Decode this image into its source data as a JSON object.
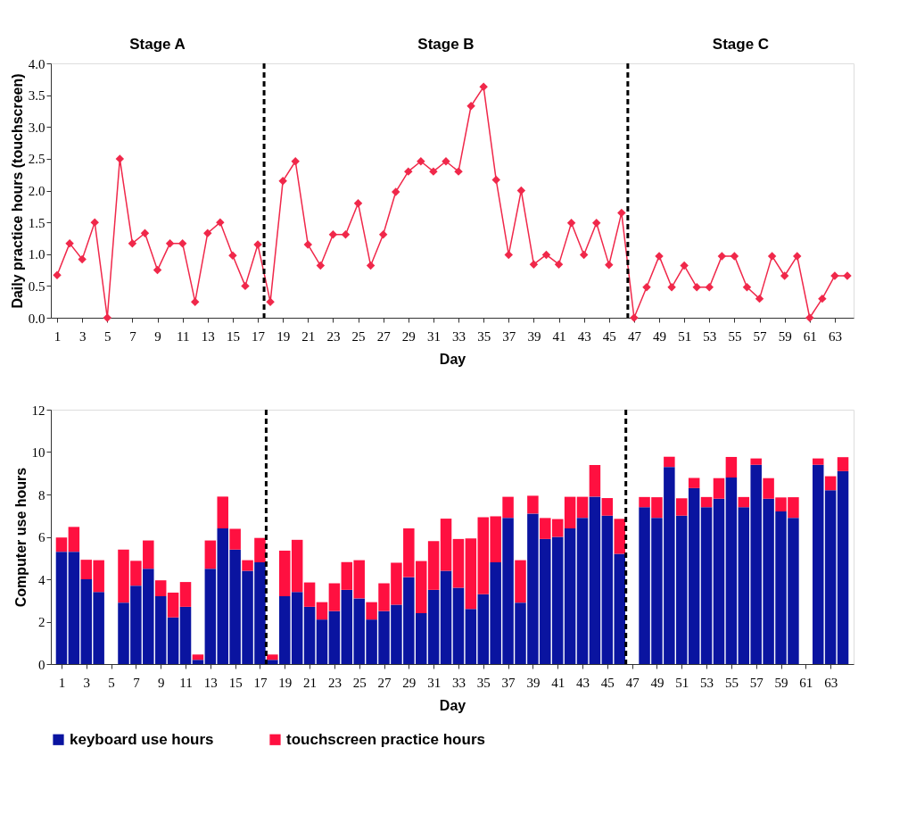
{
  "chart_data": [
    {
      "type": "line",
      "xlabel": "Day",
      "ylabel": "Daily practice hours (touchscreen)",
      "x": [
        1,
        2,
        3,
        4,
        5,
        6,
        7,
        8,
        9,
        10,
        11,
        12,
        13,
        14,
        15,
        16,
        17,
        18,
        19,
        20,
        21,
        22,
        23,
        24,
        25,
        26,
        27,
        28,
        29,
        30,
        31,
        32,
        33,
        34,
        35,
        36,
        37,
        38,
        39,
        40,
        41,
        42,
        43,
        44,
        45,
        46,
        47,
        48,
        49,
        50,
        51,
        52,
        53,
        54,
        55,
        56,
        57,
        58,
        59,
        60,
        61,
        62,
        63,
        64
      ],
      "xlim": [
        0.5,
        64.5
      ],
      "xticks": [
        1,
        3,
        5,
        7,
        9,
        11,
        13,
        15,
        17,
        19,
        21,
        23,
        25,
        27,
        29,
        31,
        33,
        35,
        37,
        39,
        41,
        43,
        45,
        47,
        49,
        51,
        53,
        55,
        57,
        59,
        61,
        63
      ],
      "ylim": [
        0,
        4
      ],
      "yticks": [
        {
          "value": 0,
          "label": "0.0"
        },
        {
          "value": 0.5,
          "label": "0.5"
        },
        {
          "value": 1,
          "label": "1.0"
        },
        {
          "value": 1.5,
          "label": "1.5"
        },
        {
          "value": 2,
          "label": "2.0"
        },
        {
          "value": 2.5,
          "label": "2.5"
        },
        {
          "value": 3,
          "label": "3.0"
        },
        {
          "value": 3.5,
          "label": "3.5"
        },
        {
          "value": 4,
          "label": "4.0"
        }
      ],
      "series": [
        {
          "color": "#f0284a",
          "values": [
            0.67,
            1.17,
            0.92,
            1.5,
            0,
            2.5,
            1.17,
            1.33,
            0.75,
            1.17,
            1.17,
            0.25,
            1.33,
            1.5,
            0.98,
            0.5,
            1.15,
            0.25,
            2.15,
            2.46,
            1.15,
            0.82,
            1.31,
            1.31,
            1.8,
            0.82,
            1.31,
            1.98,
            2.3,
            2.46,
            2.3,
            2.46,
            2.3,
            3.33,
            3.63,
            2.17,
            0.99,
            2.0,
            0.84,
            0.99,
            0.84,
            1.49,
            0.99,
            1.49,
            0.83,
            1.65,
            0,
            0.48,
            0.97,
            0.48,
            0.82,
            0.48,
            0.48,
            0.97,
            0.97,
            0.48,
            0.3,
            0.97,
            0.66,
            0.97,
            0,
            0.3,
            0.66,
            0.66
          ]
        }
      ],
      "marker": "diamond",
      "line_style": "solid",
      "grid": false,
      "ref_lines": [
        {
          "axis": "x",
          "value": 17.5,
          "line_style": "dashed",
          "color": "#000000"
        },
        {
          "axis": "x",
          "value": 46.5,
          "line_style": "dashed",
          "color": "#000000"
        }
      ],
      "annotations": [
        "Stage A",
        "Stage B",
        "Stage C"
      ]
    },
    {
      "type": "bar",
      "stacked": true,
      "xlabel": "Day",
      "ylabel": "Computer use hours",
      "x": [
        1,
        2,
        3,
        4,
        5,
        6,
        7,
        8,
        9,
        10,
        11,
        12,
        13,
        14,
        15,
        16,
        17,
        18,
        19,
        20,
        21,
        22,
        23,
        24,
        25,
        26,
        27,
        28,
        29,
        30,
        31,
        32,
        33,
        34,
        35,
        36,
        37,
        38,
        39,
        40,
        41,
        42,
        43,
        44,
        45,
        46,
        47,
        48,
        49,
        50,
        51,
        52,
        53,
        54,
        55,
        56,
        57,
        58,
        59,
        60,
        61,
        62,
        63,
        64
      ],
      "xlim": [
        0.5,
        64.5
      ],
      "xticks": [
        1,
        3,
        5,
        7,
        9,
        11,
        13,
        15,
        17,
        19,
        21,
        23,
        25,
        27,
        29,
        31,
        33,
        35,
        37,
        39,
        41,
        43,
        45,
        47,
        49,
        51,
        53,
        55,
        57,
        59,
        61,
        63
      ],
      "ylim": [
        0,
        12
      ],
      "yticks": [
        0,
        2,
        4,
        6,
        8,
        10,
        12
      ],
      "series": [
        {
          "name": "keyboard use hours",
          "color": "#0a14a0",
          "values": [
            5.3,
            5.3,
            4.0,
            3.4,
            0,
            2.9,
            3.7,
            4.5,
            3.2,
            2.2,
            2.7,
            0.2,
            4.5,
            6.4,
            5.4,
            4.4,
            4.8,
            0.2,
            3.2,
            3.4,
            2.7,
            2.1,
            2.5,
            3.5,
            3.1,
            2.1,
            2.5,
            2.8,
            4.1,
            2.4,
            3.5,
            4.4,
            3.6,
            2.6,
            3.3,
            4.8,
            6.9,
            2.9,
            7.1,
            5.9,
            6.0,
            6.4,
            6.9,
            7.9,
            7.0,
            5.2,
            0,
            7.4,
            6.9,
            9.3,
            7.0,
            8.3,
            7.4,
            7.8,
            8.8,
            7.4,
            9.4,
            7.8,
            7.2,
            6.9,
            0,
            9.4,
            8.2,
            9.1
          ]
        },
        {
          "name": "touchscreen practice hours",
          "color": "#ff1040",
          "values": [
            0.67,
            1.17,
            0.92,
            1.5,
            0,
            2.5,
            1.17,
            1.33,
            0.75,
            1.17,
            1.17,
            0.25,
            1.33,
            1.5,
            0.98,
            0.5,
            1.15,
            0.25,
            2.15,
            2.46,
            1.15,
            0.82,
            1.31,
            1.31,
            1.8,
            0.82,
            1.31,
            1.98,
            2.3,
            2.46,
            2.3,
            2.46,
            2.3,
            3.33,
            3.63,
            2.17,
            0.99,
            2.0,
            0.84,
            0.99,
            0.84,
            1.49,
            0.99,
            1.49,
            0.83,
            1.65,
            0,
            0.48,
            0.97,
            0.48,
            0.82,
            0.48,
            0.48,
            0.97,
            0.97,
            0.48,
            0.3,
            0.97,
            0.66,
            0.97,
            0,
            0.3,
            0.66,
            0.66
          ]
        }
      ],
      "legend": "bottom",
      "grid": false,
      "ref_lines": [
        {
          "axis": "x",
          "value": 17.5,
          "line_style": "dashed",
          "color": "#000000"
        },
        {
          "axis": "x",
          "value": 46.5,
          "line_style": "dashed",
          "color": "#000000"
        }
      ]
    }
  ]
}
